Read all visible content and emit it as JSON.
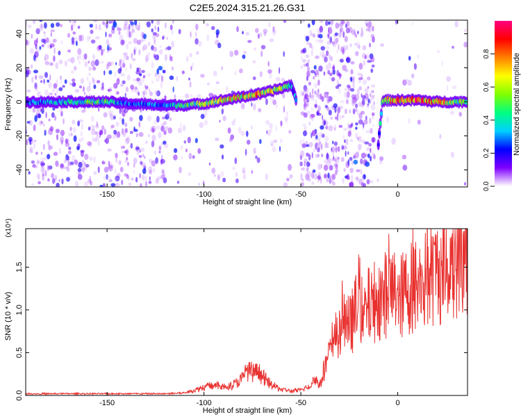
{
  "title": "C2E5.2024.315.21.26.G31",
  "colors": {
    "snr_line": "#e8312f",
    "axis": "#000000"
  },
  "chart_data": [
    {
      "type": "heatmap",
      "xlabel": "Height of straight line (km)",
      "ylabel": "Frequency (Hz)",
      "xlim": [
        -192,
        36
      ],
      "ylim": [
        -50,
        48
      ],
      "xticks": [
        -150,
        -100,
        -50,
        0
      ],
      "yticks": [
        -40,
        -20,
        0,
        20,
        40
      ],
      "colorbar": {
        "label": "Normalized spectral amplitude",
        "ticks": [
          0.0,
          0.2,
          0.4,
          0.6,
          0.8
        ],
        "range": [
          0,
          1
        ],
        "colors": [
          "#ffffff",
          "#8000ff",
          "#0000ff",
          "#00d0ff",
          "#00ff80",
          "#80ff00",
          "#ffff00",
          "#ff8000",
          "#ff0000",
          "#ff0080"
        ]
      },
      "ridge": {
        "x": [
          -192,
          -160,
          -150,
          -140,
          -120,
          -110,
          -100,
          -90,
          -80,
          -70,
          -60,
          -55,
          -52,
          -50,
          -12,
          -10,
          -8,
          -5,
          0,
          10,
          20,
          30,
          36
        ],
        "freq": [
          0,
          0,
          0,
          -1,
          -2,
          -2,
          -1,
          1,
          3,
          5,
          8,
          10,
          0,
          null,
          null,
          -25,
          0,
          1,
          1,
          1,
          0,
          0,
          0
        ],
        "amplitude": [
          0.3,
          0.5,
          0.5,
          0.3,
          0.35,
          0.5,
          0.6,
          0.7,
          0.75,
          0.8,
          0.6,
          0.4,
          0.3,
          null,
          null,
          0.3,
          0.5,
          0.7,
          0.9,
          0.9,
          0.85,
          0.6,
          0.5
        ]
      },
      "noise_regions": [
        {
          "x": [
            -192,
            -118
          ],
          "level": 0.25
        },
        {
          "x": [
            -118,
            -55
          ],
          "level": 0.08
        },
        {
          "x": [
            -50,
            -12
          ],
          "level": 0.35
        },
        {
          "x": [
            -12,
            36
          ],
          "level": 0.02
        }
      ]
    },
    {
      "type": "line",
      "xlabel": "Height of straight line (km)",
      "ylabel": "SNR (10 * v/v)",
      "scale_label": "(x10⁴)",
      "xlim": [
        -192,
        36
      ],
      "ylim": [
        0,
        1.95
      ],
      "xticks": [
        -150,
        -100,
        -50,
        0
      ],
      "yticks": [
        0.0,
        0.5,
        1.0,
        1.5
      ],
      "ytick_labels": [
        "0.0",
        "0.5",
        "1.0",
        "1.5"
      ],
      "series": [
        {
          "x": [
            -192,
            -150,
            -120,
            -110,
            -105,
            -100,
            -95,
            -90,
            -85,
            -80,
            -78,
            -75,
            -72,
            -70,
            -65,
            -60,
            -55,
            -50,
            -45,
            -43,
            -40,
            -38,
            -35,
            -32,
            -30,
            -28,
            -25,
            -22,
            -20,
            -18,
            -15,
            -12,
            -10,
            -8,
            -5,
            -2,
            0,
            2,
            5,
            10,
            15,
            20,
            25,
            30,
            33,
            36
          ],
          "values": [
            0.02,
            0.02,
            0.02,
            0.03,
            0.06,
            0.1,
            0.12,
            0.1,
            0.12,
            0.2,
            0.3,
            0.25,
            0.28,
            0.22,
            0.12,
            0.07,
            0.05,
            0.06,
            0.12,
            0.2,
            0.12,
            0.3,
            0.5,
            0.8,
            0.65,
            0.9,
            0.8,
            0.95,
            1.2,
            0.9,
            1.05,
            1.1,
            1.2,
            1.1,
            1.25,
            1.2,
            1.3,
            1.15,
            1.25,
            1.3,
            1.35,
            1.45,
            1.5,
            1.6,
            1.65,
            1.67
          ]
        }
      ]
    }
  ]
}
